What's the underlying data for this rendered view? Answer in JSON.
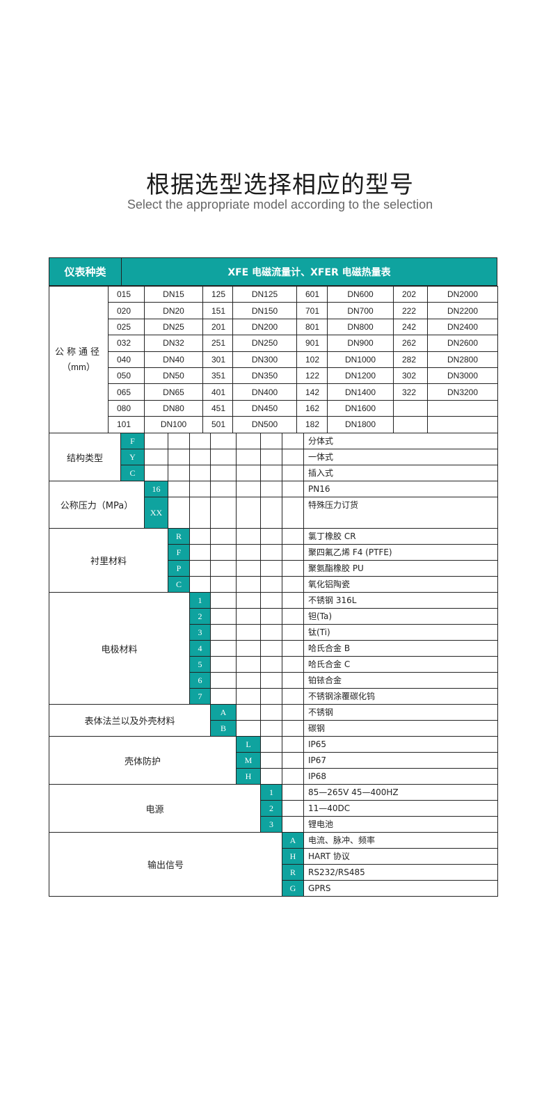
{
  "title": "根据选型选择相应的型号",
  "subtitle": "Select the appropriate model according to the selection",
  "accent_color": "#0fa39f",
  "header": {
    "label": "仪表种类",
    "value": "XFE 电磁流量计、XFER 电磁热量表"
  },
  "diameter": {
    "label": "公称通径",
    "unit": "（mm）",
    "rows": [
      [
        "015",
        "DN15",
        "125",
        "DN125",
        "601",
        "DN600",
        "202",
        "DN2000"
      ],
      [
        "020",
        "DN20",
        "151",
        "DN150",
        "701",
        "DN700",
        "222",
        "DN2200"
      ],
      [
        "025",
        "DN25",
        "201",
        "DN200",
        "801",
        "DN800",
        "242",
        "DN2400"
      ],
      [
        "032",
        "DN32",
        "251",
        "DN250",
        "901",
        "DN900",
        "262",
        "DN2600"
      ],
      [
        "040",
        "DN40",
        "301",
        "DN300",
        "102",
        "DN1000",
        "282",
        "DN2800"
      ],
      [
        "050",
        "DN50",
        "351",
        "DN350",
        "122",
        "DN1200",
        "302",
        "DN3000"
      ],
      [
        "065",
        "DN65",
        "401",
        "DN400",
        "142",
        "DN1400",
        "322",
        "DN3200"
      ],
      [
        "080",
        "DN80",
        "451",
        "DN450",
        "162",
        "DN1600",
        "",
        ""
      ],
      [
        "101",
        "DN100",
        "501",
        "DN500",
        "182",
        "DN1800",
        "",
        ""
      ]
    ]
  },
  "sections": [
    {
      "label": "结构类型",
      "options": [
        {
          "code": "F",
          "desc": "分体式"
        },
        {
          "code": "Y",
          "desc": "一体式"
        },
        {
          "code": "C",
          "desc": "插入式"
        }
      ]
    },
    {
      "label": "公称压力（MPa）",
      "options": [
        {
          "code": "16",
          "desc": "PN16"
        },
        {
          "code": "XX",
          "desc": "特殊压力订货",
          "tall": true
        }
      ]
    },
    {
      "label": "衬里材料",
      "options": [
        {
          "code": "R",
          "desc": "氯丁橡胶 CR"
        },
        {
          "code": "F",
          "desc": "聚四氟乙烯 F4 (PTFE)"
        },
        {
          "code": "P",
          "desc": "聚氨酯橡胶 PU"
        },
        {
          "code": "C",
          "desc": "氧化铝陶瓷"
        }
      ]
    },
    {
      "label": "电极材料",
      "options": [
        {
          "code": "1",
          "desc": "不锈钢 316L"
        },
        {
          "code": "2",
          "desc": "钽(Ta)"
        },
        {
          "code": "3",
          "desc": "钛(Ti)"
        },
        {
          "code": "4",
          "desc": "哈氏合金 B"
        },
        {
          "code": "5",
          "desc": "哈氏合金 C"
        },
        {
          "code": "6",
          "desc": "铂铱合金"
        },
        {
          "code": "7",
          "desc": "不锈钢涂覆碳化钨"
        }
      ]
    },
    {
      "label": "表体法兰以及外壳材料",
      "options": [
        {
          "code": "A",
          "desc": "不锈钢"
        },
        {
          "code": "B",
          "desc": "碳钢"
        }
      ]
    },
    {
      "label": "壳体防护",
      "options": [
        {
          "code": "L",
          "desc": "IP65"
        },
        {
          "code": "M",
          "desc": "IP67"
        },
        {
          "code": "H",
          "desc": "IP68"
        }
      ]
    },
    {
      "label": "电源",
      "options": [
        {
          "code": "1",
          "desc": "85—265V  45—400HZ"
        },
        {
          "code": "2",
          "desc": "11—40DC"
        },
        {
          "code": "3",
          "desc": "锂电池"
        }
      ]
    },
    {
      "label": "输出信号",
      "options": [
        {
          "code": "A",
          "desc": "电流、脉冲、频率"
        },
        {
          "code": "H",
          "desc": "HART 协议"
        },
        {
          "code": "R",
          "desc": "RS232/RS485"
        },
        {
          "code": "G",
          "desc": "GPRS"
        }
      ]
    }
  ]
}
